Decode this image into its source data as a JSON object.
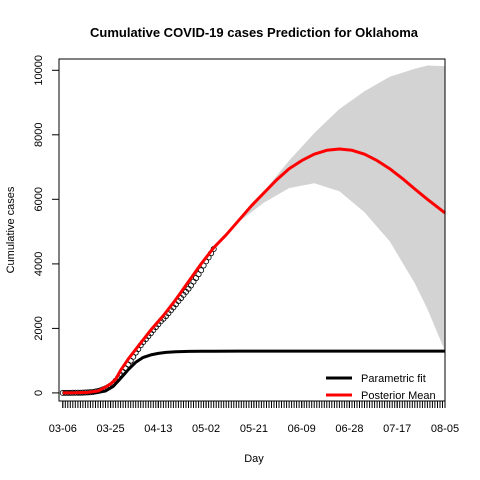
{
  "chart_data": {
    "type": "line",
    "title": "Cumulative COVID-19 cases Prediction for Oklahoma",
    "xlabel": "Day",
    "ylabel": "Cumulative cases",
    "x_tick_labels": [
      "03-06",
      "03-25",
      "04-13",
      "05-02",
      "05-21",
      "06-09",
      "06-28",
      "07-17",
      "08-05"
    ],
    "x_tick_days": [
      0,
      19,
      38,
      57,
      76,
      95,
      114,
      133,
      152
    ],
    "y_ticks": [
      0,
      2000,
      4000,
      6000,
      8000,
      10000
    ],
    "xlim": [
      -1.5,
      152
    ],
    "ylim": [
      -250,
      10350
    ],
    "grid": false,
    "legend_position": "bottom-right",
    "series": [
      {
        "name": "Parametric fit",
        "color": "#000000",
        "x": [
          0,
          10,
          14,
          17,
          20,
          23,
          26,
          29,
          32,
          35,
          38,
          41,
          45,
          50,
          55,
          60,
          70,
          80,
          100,
          120,
          140,
          152
        ],
        "y": [
          0,
          5,
          20,
          60,
          200,
          450,
          720,
          950,
          1100,
          1180,
          1225,
          1255,
          1275,
          1287,
          1292,
          1295,
          1297,
          1298,
          1298,
          1298,
          1298,
          1298
        ]
      },
      {
        "name": "Posterior Mean",
        "color": "#ff0000",
        "x": [
          0,
          5,
          10,
          14,
          17,
          19,
          21,
          23,
          26,
          30,
          35,
          40,
          45,
          50,
          55,
          60,
          65,
          70,
          75,
          80,
          85,
          90,
          95,
          100,
          105,
          110,
          115,
          120,
          125,
          130,
          135,
          140,
          145,
          152
        ],
        "y": [
          0,
          5,
          15,
          60,
          180,
          280,
          420,
          700,
          1050,
          1450,
          1950,
          2400,
          2900,
          3450,
          4000,
          4500,
          4900,
          5350,
          5800,
          6200,
          6600,
          6950,
          7200,
          7400,
          7520,
          7560,
          7520,
          7400,
          7200,
          6950,
          6650,
          6320,
          6000,
          5580
        ]
      }
    ],
    "band": {
      "color": "#d3d3d3",
      "x": [
        60,
        70,
        80,
        90,
        100,
        110,
        120,
        130,
        140,
        145,
        152
      ],
      "upper": [
        4500,
        5350,
        6250,
        7200,
        8050,
        8800,
        9350,
        9800,
        10050,
        10150,
        10130
      ],
      "lower": [
        4500,
        5300,
        5900,
        6350,
        6500,
        6250,
        5600,
        4700,
        3400,
        2600,
        1300
      ]
    },
    "observed": {
      "x": [
        0,
        1,
        2,
        3,
        4,
        5,
        6,
        7,
        8,
        9,
        10,
        11,
        12,
        13,
        14,
        15,
        16,
        17,
        18,
        19,
        20,
        21,
        22,
        23,
        24,
        25,
        26,
        27,
        28,
        29,
        30,
        31,
        32,
        33,
        34,
        35,
        36,
        37,
        38,
        39,
        40,
        41,
        42,
        43,
        44,
        45,
        46,
        47,
        48,
        49,
        50,
        51,
        52,
        53,
        54,
        55,
        56,
        57,
        58,
        59,
        60
      ],
      "y": [
        0,
        0,
        0,
        2,
        3,
        5,
        7,
        8,
        10,
        12,
        15,
        20,
        30,
        45,
        60,
        80,
        110,
        140,
        180,
        230,
        290,
        380,
        470,
        560,
        650,
        760,
        880,
        1000,
        1120,
        1250,
        1360,
        1480,
        1580,
        1670,
        1760,
        1850,
        1950,
        2040,
        2130,
        2220,
        2300,
        2380,
        2470,
        2560,
        2650,
        2750,
        2850,
        2940,
        3040,
        3130,
        3230,
        3330,
        3450,
        3560,
        3680,
        3800,
        3950,
        4080,
        4200,
        4330,
        4460
      ]
    }
  }
}
